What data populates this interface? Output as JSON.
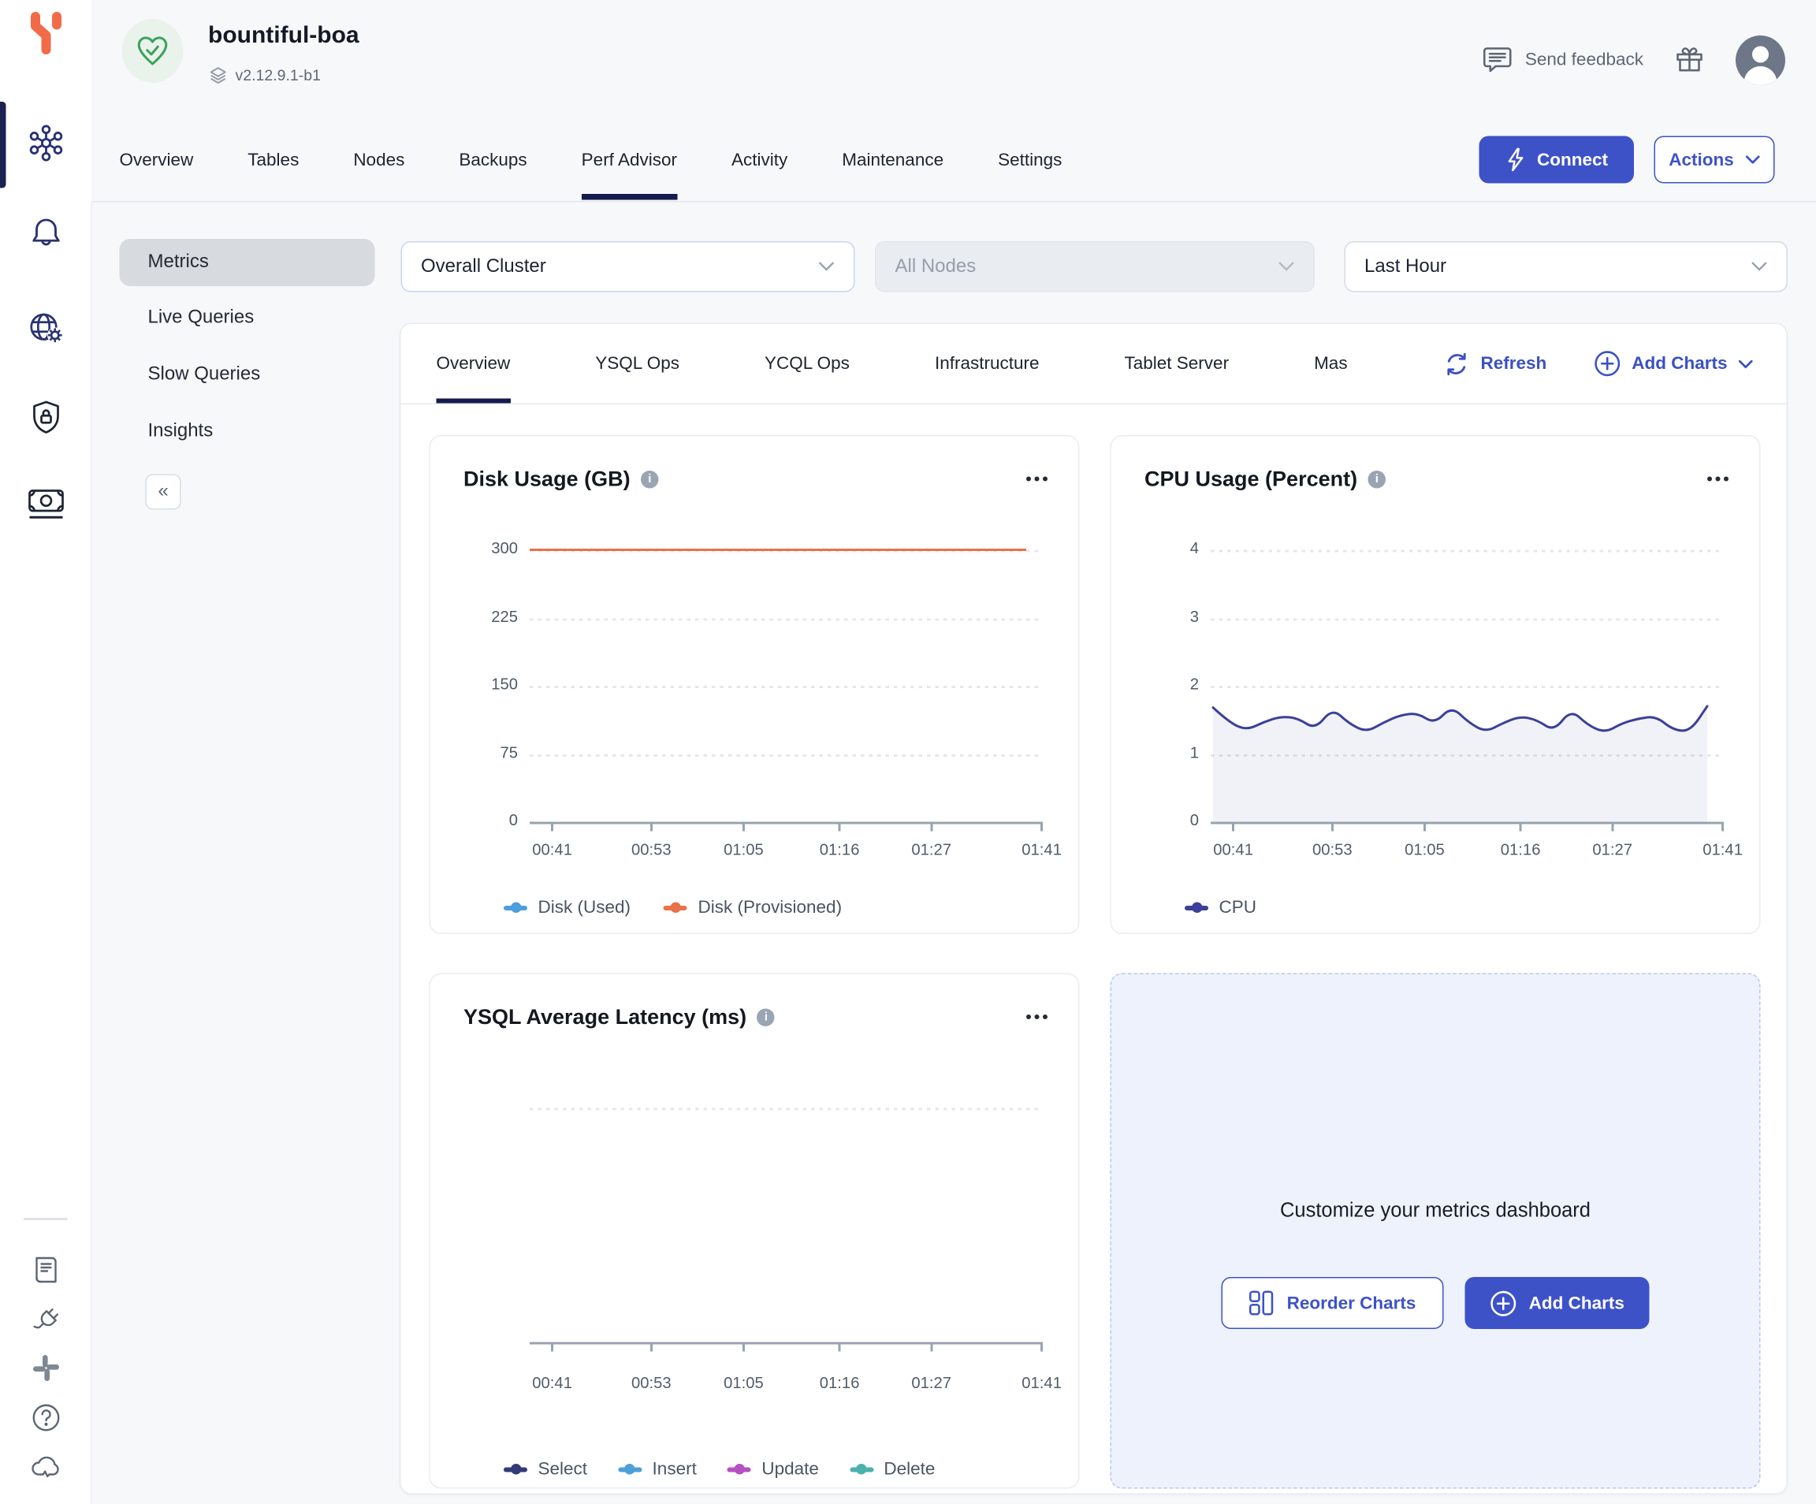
{
  "header": {
    "cluster_name": "bountiful-boa",
    "version": "v2.12.9.1-b1",
    "send_feedback_label": "Send feedback"
  },
  "nav_tabs": {
    "items": [
      "Overview",
      "Tables",
      "Nodes",
      "Backups",
      "Perf Advisor",
      "Activity",
      "Maintenance",
      "Settings"
    ],
    "active": "Perf Advisor"
  },
  "actions": {
    "connect_label": "Connect",
    "actions_label": "Actions"
  },
  "side_menu": {
    "items": [
      "Metrics",
      "Live Queries",
      "Slow Queries",
      "Insights"
    ],
    "active": "Metrics",
    "collapse_glyph": "«"
  },
  "filters": {
    "cluster_scope": "Overall Cluster",
    "nodes": "All Nodes",
    "nodes_disabled": true,
    "time_range": "Last Hour"
  },
  "metrics_header": {
    "tabs": [
      "Overview",
      "YSQL Ops",
      "YCQL Ops",
      "Infrastructure",
      "Tablet Server",
      "Mas"
    ],
    "active": "Overview",
    "refresh_label": "Refresh",
    "add_charts_label": "Add Charts"
  },
  "customize": {
    "title": "Customize your metrics dashboard",
    "reorder_label": "Reorder Charts",
    "add_charts_label": "Add Charts"
  },
  "glyphs": {
    "info": "i"
  },
  "colors": {
    "primary_blue": "#3e52c8",
    "active_navy": "#151b4d",
    "logo_orange": "#f26a47",
    "health_green": "#3da25a"
  },
  "chart_data": [
    {
      "type": "line",
      "title": "Disk Usage (GB)",
      "x_ticks": [
        "00:41",
        "00:53",
        "01:05",
        "01:16",
        "01:27",
        "01:41"
      ],
      "y_ticks": [
        0,
        75,
        150,
        225,
        300
      ],
      "ylim": [
        0,
        300
      ],
      "grid": true,
      "legend_position": "bottom",
      "series": [
        {
          "name": "Disk (Used)",
          "color": "#4d9fdb",
          "values": [
            0,
            0,
            0,
            0,
            0,
            0,
            0
          ]
        },
        {
          "name": "Disk (Provisioned)",
          "color": "#e97248",
          "values": [
            300,
            300,
            300,
            300,
            300,
            300,
            300
          ]
        }
      ]
    },
    {
      "type": "area",
      "title": "CPU Usage (Percent)",
      "x_ticks": [
        "00:41",
        "00:53",
        "01:05",
        "01:16",
        "01:27",
        "01:41"
      ],
      "y_ticks": [
        0,
        1,
        2,
        3,
        4
      ],
      "ylim": [
        0,
        4
      ],
      "grid": true,
      "legend_position": "bottom",
      "series": [
        {
          "name": "CPU",
          "color": "#3b4099",
          "values": [
            1.68,
            1.45,
            1.35,
            1.47,
            1.55,
            1.52,
            1.36,
            1.67,
            1.44,
            1.32,
            1.46,
            1.57,
            1.6,
            1.44,
            1.7,
            1.46,
            1.32,
            1.45,
            1.55,
            1.5,
            1.33,
            1.65,
            1.42,
            1.31,
            1.45,
            1.52,
            1.55,
            1.35,
            1.33,
            1.7
          ]
        }
      ]
    },
    {
      "type": "line",
      "title": "YSQL Average Latency (ms)",
      "x_ticks": [
        "00:41",
        "00:53",
        "01:05",
        "01:16",
        "01:27",
        "01:41"
      ],
      "y_ticks": [],
      "grid": true,
      "legend_position": "bottom",
      "series": [
        {
          "name": "Select",
          "color": "#333a78",
          "values": []
        },
        {
          "name": "Insert",
          "color": "#4d9fdb",
          "values": []
        },
        {
          "name": "Update",
          "color": "#b750c2",
          "values": []
        },
        {
          "name": "Delete",
          "color": "#49b2ac",
          "values": []
        }
      ]
    }
  ]
}
